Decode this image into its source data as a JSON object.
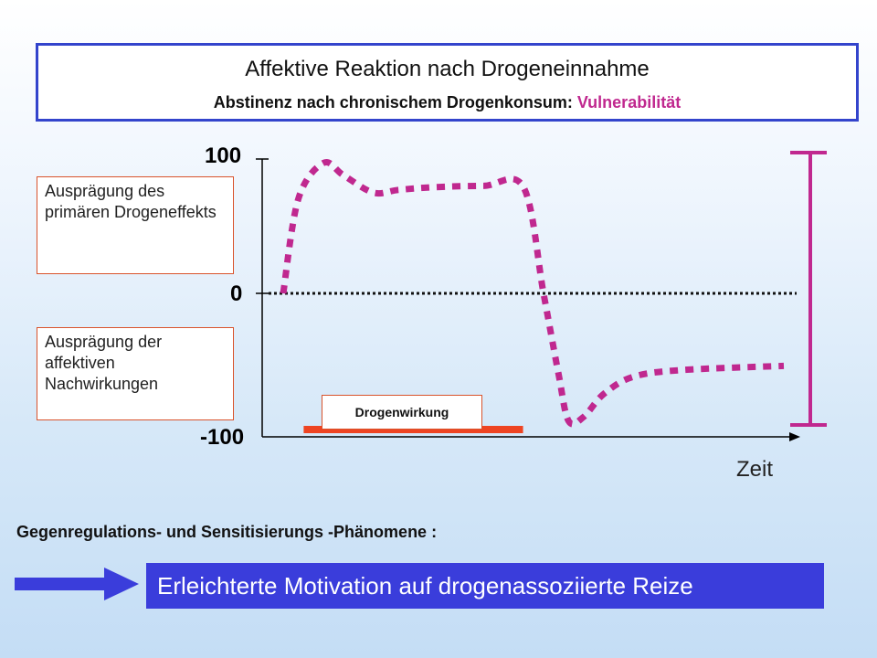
{
  "title": {
    "main": "Affektive Reaktion nach Drogeneinnahme",
    "sub_prefix": "Abstinenz nach chronischem  Drogenkonsum: ",
    "sub_accent": "Vulnerabilität"
  },
  "labels": {
    "primary": "Ausprägung des primären Drogeneffekts",
    "after": "Ausprägung der affektiven Nachwirkungen",
    "drug": "Drogenwirkung"
  },
  "chart_data": {
    "type": "line",
    "yticks": [
      "100",
      "0",
      "-100"
    ],
    "xlabel": "Zeit",
    "ylim": [
      -100,
      100
    ],
    "series": [
      {
        "x": [
          0,
          3,
          8,
          12,
          18,
          23,
          30,
          40,
          48,
          52,
          55,
          57,
          60,
          64,
          70,
          80,
          100
        ],
        "y": [
          0,
          70,
          97,
          88,
          75,
          77,
          79,
          80,
          79,
          0,
          -60,
          -95,
          -92,
          -75,
          -62,
          -57,
          -54
        ],
        "color": "#c0288f"
      }
    ],
    "baseline": 0,
    "drug_period": [
      5,
      47
    ],
    "colors": {
      "line": "#c0288f",
      "drug_bar": "#ee4422",
      "axis": "#000000"
    }
  },
  "phenomena": "Gegenregulations- und  Sensitisierungs -Phänomene :",
  "motivation": "Erleichterte Motivation auf drogenassoziierte Reize"
}
